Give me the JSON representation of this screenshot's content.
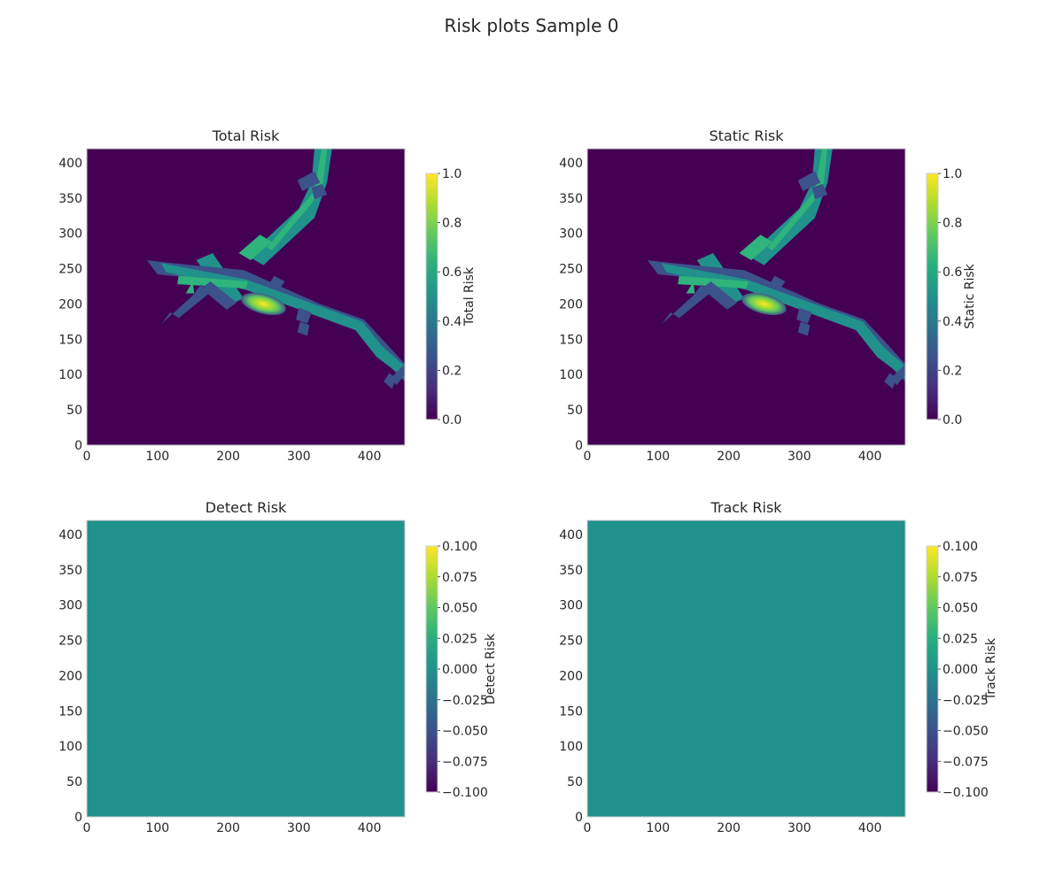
{
  "figure": {
    "suptitle": "Risk plots Sample 0"
  },
  "colors": {
    "background_low": "#440154",
    "road_teal": "#21918c",
    "road_green": "#2fb47c",
    "road_blue": "#3b528b",
    "peak_yellow": "#fde725",
    "uniform_zero": "#21918c",
    "frame": "#cccccc"
  },
  "chart_data": [
    {
      "type": "heatmap",
      "title": "Total Risk",
      "xlabel": "",
      "ylabel": "",
      "xlim": [
        0,
        450
      ],
      "ylim": [
        0,
        420
      ],
      "xticks": [
        "0",
        "100",
        "200",
        "300",
        "400"
      ],
      "yticks": [
        "0",
        "50",
        "100",
        "150",
        "200",
        "250",
        "300",
        "350",
        "400"
      ],
      "colorbar": {
        "label": "Total Risk",
        "range": [
          0.0,
          1.0
        ],
        "ticks": [
          "0.0",
          "0.2",
          "0.4",
          "0.6",
          "0.8",
          "1.0"
        ],
        "colormap": "viridis"
      },
      "content": "road-network risk map",
      "background_value": 0.0,
      "peak_value": 1.0,
      "peak_location": [
        250,
        200
      ]
    },
    {
      "type": "heatmap",
      "title": "Static Risk",
      "xlabel": "",
      "ylabel": "",
      "xlim": [
        0,
        450
      ],
      "ylim": [
        0,
        420
      ],
      "xticks": [
        "0",
        "100",
        "200",
        "300",
        "400"
      ],
      "yticks": [
        "0",
        "50",
        "100",
        "150",
        "200",
        "250",
        "300",
        "350",
        "400"
      ],
      "colorbar": {
        "label": "Static Risk",
        "range": [
          0.0,
          1.0
        ],
        "ticks": [
          "0.0",
          "0.2",
          "0.4",
          "0.6",
          "0.8",
          "1.0"
        ],
        "colormap": "viridis"
      },
      "content": "road-network risk map",
      "background_value": 0.0,
      "peak_value": 1.0,
      "peak_location": [
        250,
        200
      ]
    },
    {
      "type": "heatmap",
      "title": "Detect Risk",
      "xlabel": "",
      "ylabel": "",
      "xlim": [
        0,
        450
      ],
      "ylim": [
        0,
        420
      ],
      "xticks": [
        "0",
        "100",
        "200",
        "300",
        "400"
      ],
      "yticks": [
        "0",
        "50",
        "100",
        "150",
        "200",
        "250",
        "300",
        "350",
        "400"
      ],
      "colorbar": {
        "label": "Detect Risk",
        "range": [
          -0.1,
          0.1
        ],
        "ticks": [
          "−0.100",
          "−0.075",
          "−0.050",
          "−0.025",
          "0.000",
          "0.025",
          "0.050",
          "0.075",
          "0.100"
        ],
        "colormap": "viridis"
      },
      "content": "uniform",
      "uniform_value": 0.0
    },
    {
      "type": "heatmap",
      "title": "Track Risk",
      "xlabel": "",
      "ylabel": "",
      "xlim": [
        0,
        450
      ],
      "ylim": [
        0,
        420
      ],
      "xticks": [
        "0",
        "100",
        "200",
        "300",
        "400"
      ],
      "yticks": [
        "0",
        "50",
        "100",
        "150",
        "200",
        "250",
        "300",
        "350",
        "400"
      ],
      "colorbar": {
        "label": "Track Risk",
        "range": [
          -0.1,
          0.1
        ],
        "ticks": [
          "−0.100",
          "−0.075",
          "−0.050",
          "−0.025",
          "0.000",
          "0.025",
          "0.050",
          "0.075",
          "0.100"
        ],
        "colormap": "viridis"
      },
      "content": "uniform",
      "uniform_value": 0.0
    }
  ]
}
